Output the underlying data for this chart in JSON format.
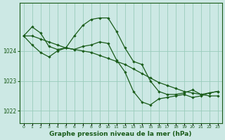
{
  "title": "Graphe pression niveau de la mer (hPa)",
  "bg_color": "#cce8e4",
  "grid_color": "#99ccbb",
  "line_color": "#1a5c1a",
  "hours": [
    0,
    1,
    2,
    3,
    4,
    5,
    6,
    7,
    8,
    9,
    10,
    11,
    12,
    13,
    14,
    15,
    16,
    17,
    18,
    19,
    20,
    21,
    22,
    23
  ],
  "series1": [
    1024.5,
    1024.8,
    1024.6,
    1024.15,
    1024.05,
    1024.1,
    1024.5,
    1024.85,
    1025.05,
    1025.1,
    1025.1,
    1024.65,
    1024.1,
    1023.65,
    1023.55,
    1023.0,
    1022.65,
    1022.55,
    1022.55,
    1022.6,
    1022.7,
    1022.55,
    1022.6,
    1022.65
  ],
  "series2": [
    1024.5,
    1024.5,
    1024.4,
    1024.3,
    1024.2,
    1024.1,
    1024.05,
    1024.0,
    1023.95,
    1023.85,
    1023.75,
    1023.65,
    1023.55,
    1023.4,
    1023.25,
    1023.1,
    1022.95,
    1022.85,
    1022.75,
    1022.65,
    1022.6,
    1022.55,
    1022.5,
    1022.5
  ],
  "series3": [
    1024.5,
    1024.2,
    1023.95,
    1023.8,
    1024.0,
    1024.1,
    1024.05,
    1024.15,
    1024.2,
    1024.3,
    1024.25,
    1023.7,
    1023.3,
    1022.65,
    1022.3,
    1022.2,
    1022.4,
    1022.45,
    1022.5,
    1022.55,
    1022.45,
    1022.5,
    1022.6,
    1022.65
  ],
  "yticks": [
    1022,
    1023,
    1024
  ],
  "ylim": [
    1021.6,
    1025.6
  ],
  "xlim": [
    -0.5,
    23.5
  ]
}
